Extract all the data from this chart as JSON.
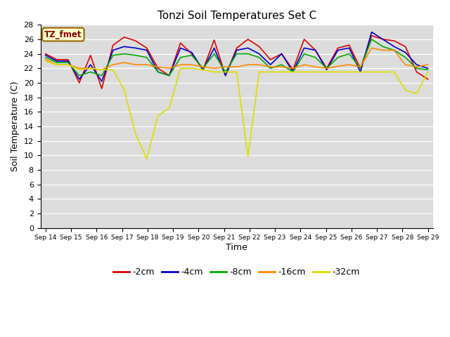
{
  "title": "Tonzi Soil Temperatures Set C",
  "xlabel": "Time",
  "ylabel": "Soil Temperature (C)",
  "annotation": "TZ_fmet",
  "plot_bg_color": "#dcdcdc",
  "fig_bg_color": "#ffffff",
  "ylim": [
    0,
    28
  ],
  "yticks": [
    0,
    2,
    4,
    6,
    8,
    10,
    12,
    14,
    16,
    18,
    20,
    22,
    24,
    26,
    28
  ],
  "x_labels": [
    "Sep 14",
    "Sep 15",
    "Sep 16",
    "Sep 17",
    "Sep 18",
    "Sep 19",
    "Sep 20",
    "Sep 21",
    "Sep 22",
    "Sep 23",
    "Sep 24",
    "Sep 25",
    "Sep 26",
    "Sep 27",
    "Sep 28",
    "Sep 29"
  ],
  "series": {
    "-2cm": {
      "color": "#dd0000",
      "values": [
        24.0,
        23.2,
        23.2,
        20.0,
        23.8,
        19.2,
        25.2,
        26.3,
        25.8,
        24.8,
        22.0,
        21.0,
        25.5,
        24.0,
        21.8,
        25.9,
        21.0,
        24.8,
        26.0,
        25.0,
        23.2,
        24.0,
        21.8,
        26.0,
        24.5,
        22.0,
        24.8,
        25.2,
        22.0,
        26.5,
        26.0,
        25.8,
        25.0,
        21.5,
        20.5
      ]
    },
    "-4cm": {
      "color": "#0000cc",
      "values": [
        23.8,
        23.0,
        23.0,
        20.5,
        22.5,
        20.2,
        24.5,
        25.0,
        24.8,
        24.5,
        21.5,
        21.0,
        24.8,
        24.2,
        21.8,
        24.8,
        21.0,
        24.5,
        24.8,
        24.0,
        22.5,
        24.0,
        21.5,
        24.8,
        24.5,
        21.8,
        24.5,
        24.8,
        21.5,
        27.0,
        26.0,
        25.0,
        24.2,
        22.5,
        22.0
      ]
    },
    "-8cm": {
      "color": "#00aa00",
      "values": [
        23.5,
        22.8,
        22.8,
        21.0,
        21.5,
        21.0,
        23.8,
        24.0,
        23.8,
        23.5,
        21.5,
        21.0,
        23.5,
        23.8,
        22.0,
        24.0,
        21.5,
        24.0,
        24.0,
        23.5,
        22.0,
        22.5,
        21.5,
        24.0,
        23.5,
        22.0,
        23.5,
        24.0,
        22.0,
        26.0,
        25.0,
        24.5,
        23.5,
        22.0,
        21.8
      ]
    },
    "-16cm": {
      "color": "#ff8800",
      "values": [
        23.2,
        22.5,
        22.5,
        22.0,
        22.0,
        21.8,
        22.5,
        22.8,
        22.5,
        22.5,
        22.2,
        22.0,
        22.5,
        22.5,
        22.2,
        22.0,
        22.2,
        22.2,
        22.5,
        22.5,
        22.2,
        22.2,
        22.0,
        22.5,
        22.2,
        22.0,
        22.3,
        22.5,
        22.2,
        24.8,
        24.5,
        24.5,
        22.5,
        22.2,
        22.5
      ]
    },
    "-32cm": {
      "color": "#dddd00",
      "values": [
        23.0,
        22.5,
        22.5,
        21.8,
        22.0,
        21.8,
        21.8,
        19.0,
        13.0,
        9.5,
        15.5,
        16.5,
        22.0,
        22.0,
        21.8,
        21.5,
        21.5,
        21.5,
        9.8,
        21.5,
        21.5,
        21.5,
        21.5,
        21.5,
        21.5,
        21.5,
        21.5,
        21.5,
        21.5,
        21.5,
        21.5,
        21.5,
        19.0,
        18.5,
        21.5
      ]
    }
  },
  "legend": {
    "labels": [
      "-2cm",
      "-4cm",
      "-8cm",
      "-16cm",
      "-32cm"
    ],
    "colors": [
      "#dd0000",
      "#0000cc",
      "#00aa00",
      "#ff8800",
      "#dddd00"
    ]
  }
}
